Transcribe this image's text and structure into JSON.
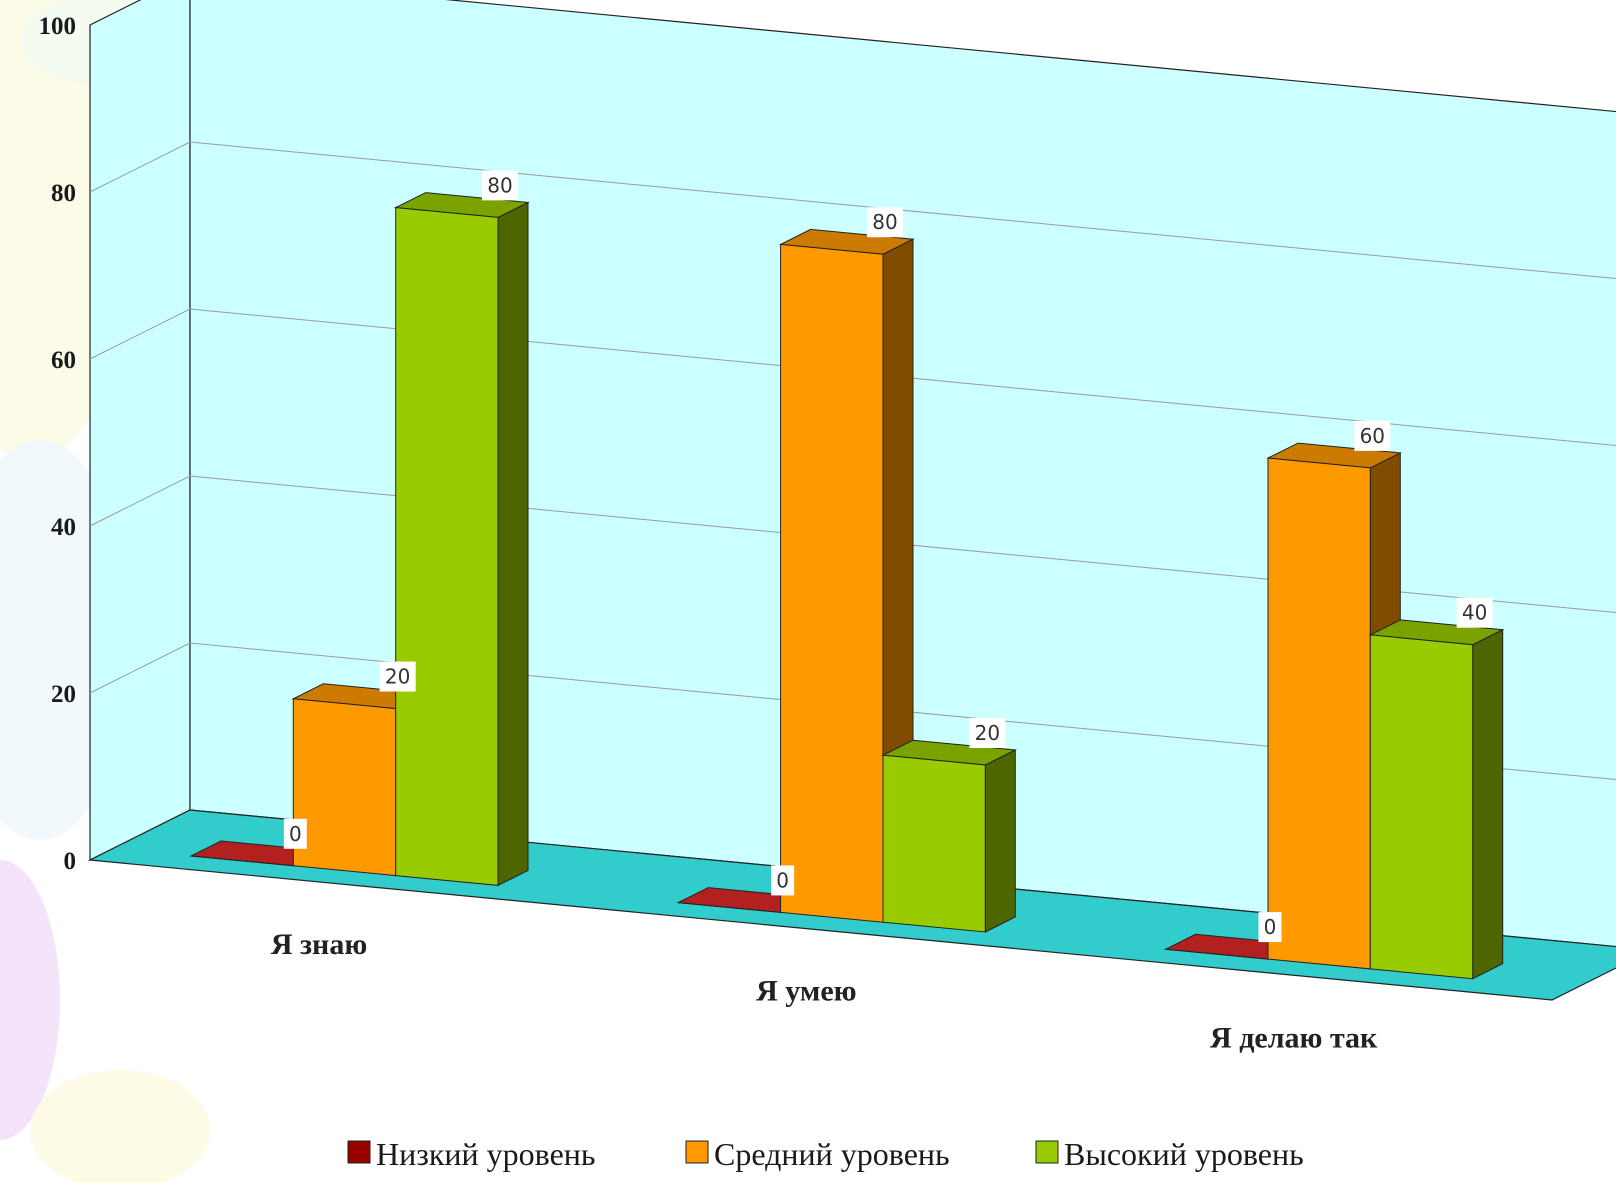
{
  "chart_data": {
    "type": "bar",
    "title": "",
    "xlabel": "",
    "ylabel": "",
    "ylim": [
      0,
      100
    ],
    "yticks": [
      "0",
      "20",
      "40",
      "60",
      "80",
      "100"
    ],
    "categories": [
      "Я знаю",
      "Я умею",
      "Я делаю так"
    ],
    "series": [
      {
        "name": "Низкий уровень",
        "values": [
          0,
          0,
          0
        ],
        "labels": [
          "0",
          "0",
          "0"
        ]
      },
      {
        "name": "Средний уровень",
        "values": [
          20,
          80,
          60
        ],
        "labels": [
          "20",
          "80",
          "60"
        ]
      },
      {
        "name": "Высокий уровень",
        "values": [
          80,
          20,
          40
        ],
        "labels": [
          "80",
          "20",
          "40"
        ]
      }
    ],
    "grid": true,
    "legend": "bottom",
    "style": "3d-clustered"
  },
  "colors": {
    "plot_wall": "#ccffff",
    "floor": "#33cccc",
    "series": [
      {
        "front": "#990000",
        "side": "#5c0000",
        "top": "#b32020"
      },
      {
        "front": "#ff9900",
        "side": "#804d00",
        "top": "#cc7a00"
      },
      {
        "front": "#99cc00",
        "side": "#4d6600",
        "top": "#7aa300"
      }
    ]
  }
}
